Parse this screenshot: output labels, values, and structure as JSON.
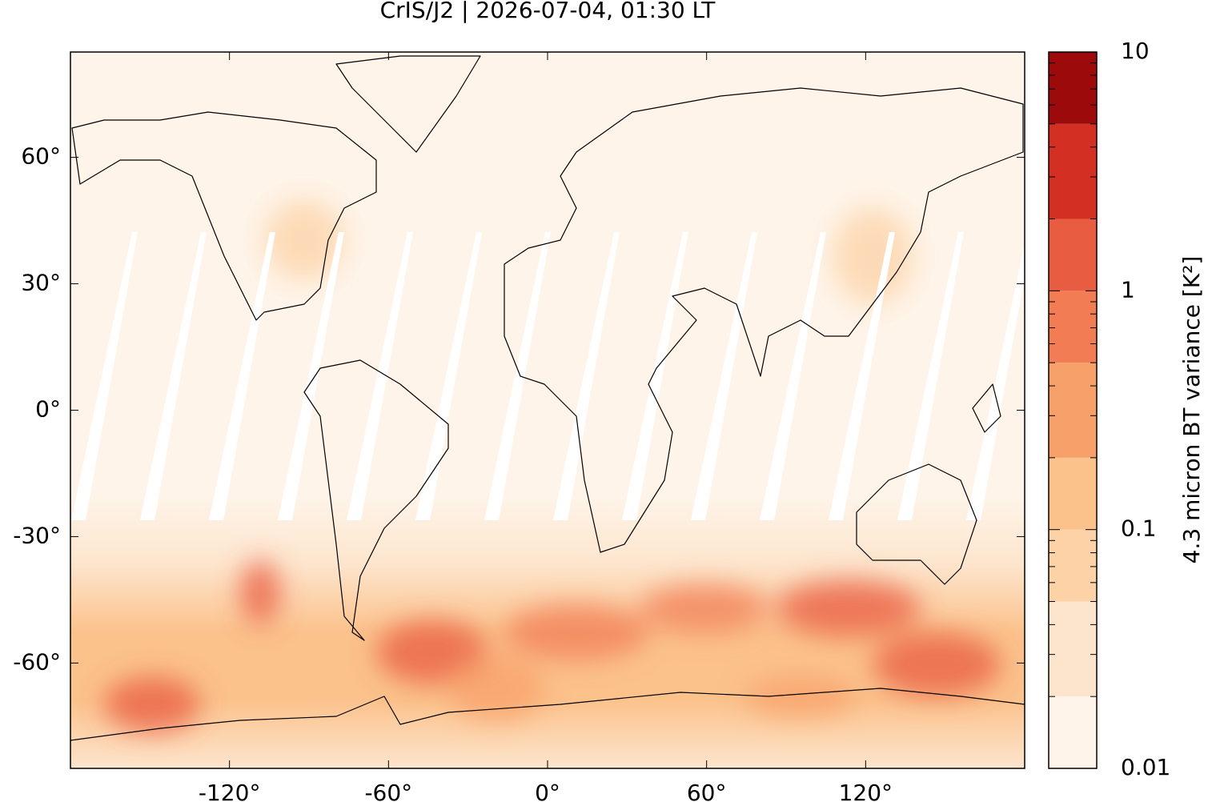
{
  "chart_data": {
    "type": "map",
    "title": "CrIS/J2 | 2026-07-04, 01:30 LT",
    "xlim": [
      -180,
      180
    ],
    "ylim": [
      -85,
      85
    ],
    "xticks": [
      {
        "value": -120,
        "label": "-120°"
      },
      {
        "value": -60,
        "label": "-60°"
      },
      {
        "value": 0,
        "label": "0°"
      },
      {
        "value": 60,
        "label": "60°"
      },
      {
        "value": 120,
        "label": "120°"
      }
    ],
    "yticks": [
      {
        "value": 60,
        "label": "60°"
      },
      {
        "value": 30,
        "label": "30°"
      },
      {
        "value": 0,
        "label": "0°"
      },
      {
        "value": -30,
        "label": "-30°"
      },
      {
        "value": -60,
        "label": "-60°"
      }
    ],
    "colorbar": {
      "label": "4.3 micron BT variance [K²]",
      "scale": "log",
      "lim": [
        0.01,
        10
      ],
      "ticks": [
        0.01,
        0.1,
        1,
        10
      ],
      "levels": [
        0.01,
        0.02,
        0.05,
        0.1,
        0.2,
        0.5,
        1,
        2,
        5,
        10
      ],
      "colors": [
        "#fef4e9",
        "#fde5cd",
        "#fcd2a6",
        "#fbc28c",
        "#f8a06a",
        "#f27d55",
        "#e85c41",
        "#d42f23",
        "#9c0a0c"
      ]
    }
  }
}
